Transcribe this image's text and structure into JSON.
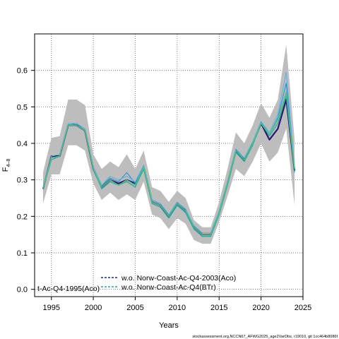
{
  "chart_data": {
    "type": "line",
    "title": "",
    "xlabel": "Years",
    "ylabel_main": "F",
    "ylabel_sub": "4–8",
    "xlim": [
      1993,
      2025
    ],
    "ylim": [
      -0.02,
      0.7
    ],
    "xticks": [
      1995,
      2000,
      2005,
      2010,
      2015,
      2020,
      2025
    ],
    "yticks": [
      0.0,
      0.1,
      0.2,
      0.3,
      0.4,
      0.5,
      0.6
    ],
    "xtick_labels": [
      "1995",
      "2000",
      "2005",
      "2010",
      "2015",
      "2020",
      "2025"
    ],
    "ytick_labels": [
      "0.0",
      "0.1",
      "0.2",
      "0.3",
      "0.4",
      "0.5",
      "0.6"
    ],
    "grid": true,
    "grid_style": "dotted",
    "legend_placement": "bottom",
    "years": [
      1994,
      1995,
      1996,
      1997,
      1998,
      1999,
      2000,
      2001,
      2002,
      2003,
      2004,
      2005,
      2006,
      2007,
      2008,
      2009,
      2010,
      2011,
      2012,
      2013,
      2014,
      2015,
      2016,
      2017,
      2018,
      2019,
      2020,
      2021,
      2022,
      2023,
      2024
    ],
    "confidence_band": {
      "color": "#bdbdbd",
      "upper": [
        0.32,
        0.415,
        0.42,
        0.52,
        0.52,
        0.505,
        0.37,
        0.33,
        0.35,
        0.335,
        0.37,
        0.33,
        0.38,
        0.28,
        0.27,
        0.24,
        0.27,
        0.25,
        0.19,
        0.17,
        0.17,
        0.24,
        0.33,
        0.43,
        0.4,
        0.45,
        0.51,
        0.47,
        0.52,
        0.67,
        0.41
      ],
      "lower": [
        0.235,
        0.315,
        0.315,
        0.395,
        0.395,
        0.38,
        0.29,
        0.245,
        0.265,
        0.245,
        0.26,
        0.245,
        0.295,
        0.205,
        0.195,
        0.165,
        0.195,
        0.18,
        0.135,
        0.125,
        0.125,
        0.185,
        0.255,
        0.33,
        0.31,
        0.35,
        0.4,
        0.35,
        0.375,
        0.44,
        0.23
      ]
    },
    "series": [
      {
        "style": "line",
        "color": "#2a1a6e",
        "width": 2.2,
        "values": [
          0.275,
          0.365,
          0.365,
          0.45,
          0.45,
          0.435,
          0.33,
          0.28,
          0.3,
          0.29,
          0.3,
          0.29,
          0.335,
          0.24,
          0.23,
          0.2,
          0.235,
          0.215,
          0.17,
          0.15,
          0.15,
          0.21,
          0.29,
          0.38,
          0.355,
          0.4,
          0.455,
          0.41,
          0.44,
          0.52,
          0.325
        ]
      },
      {
        "style": "line",
        "color": "#2a8fd6",
        "width": 1.1,
        "values": [
          0.275,
          0.36,
          0.365,
          0.45,
          0.455,
          0.435,
          0.335,
          0.285,
          0.305,
          0.295,
          0.32,
          0.29,
          0.34,
          0.245,
          0.235,
          0.205,
          0.235,
          0.22,
          0.17,
          0.15,
          0.15,
          0.21,
          0.29,
          0.385,
          0.355,
          0.4,
          0.46,
          0.425,
          0.47,
          0.565,
          0.33
        ]
      },
      {
        "style": "line",
        "color": "#55b4e8",
        "width": 1.0,
        "values": [
          0.28,
          0.365,
          0.37,
          0.455,
          0.455,
          0.44,
          0.335,
          0.285,
          0.31,
          0.3,
          0.31,
          0.295,
          0.34,
          0.245,
          0.235,
          0.205,
          0.24,
          0.22,
          0.175,
          0.155,
          0.155,
          0.215,
          0.295,
          0.385,
          0.36,
          0.405,
          0.46,
          0.43,
          0.48,
          0.595,
          0.335
        ]
      },
      {
        "style": "line",
        "color": "#27a2a0",
        "width": 1.1,
        "values": [
          0.275,
          0.355,
          0.365,
          0.45,
          0.45,
          0.435,
          0.33,
          0.275,
          0.295,
          0.285,
          0.295,
          0.28,
          0.33,
          0.235,
          0.225,
          0.195,
          0.23,
          0.21,
          0.165,
          0.145,
          0.145,
          0.205,
          0.285,
          0.375,
          0.35,
          0.395,
          0.455,
          0.42,
          0.455,
          0.53,
          0.32
        ]
      },
      {
        "style": "line",
        "color": "#4fc27c",
        "width": 1.4,
        "values": [
          0.275,
          0.36,
          0.365,
          0.45,
          0.45,
          0.435,
          0.33,
          0.28,
          0.3,
          0.285,
          0.3,
          0.285,
          0.335,
          0.24,
          0.23,
          0.2,
          0.235,
          0.215,
          0.17,
          0.15,
          0.15,
          0.21,
          0.29,
          0.38,
          0.355,
          0.4,
          0.455,
          0.425,
          0.465,
          0.54,
          0.33
        ]
      }
    ],
    "legend": [
      {
        "label": "t-Ac-Q4-1995(Aco)",
        "color": "#2a8fd6",
        "dash": ""
      },
      {
        "label": "w.o. Norw-Coast-Ac-Q4-2003(Aco)",
        "color": "#1f2a7a",
        "dash": "3,2"
      },
      {
        "label": "w.o. Norw-Coast-Ac-Q4(BTr)",
        "color": "#27a2a0",
        "dash": "3,2"
      }
    ]
  },
  "footer_text": "stockassessment.org,NCCN67_AFWG2025_age2VarObs, r19010, git 1cc464b8086f"
}
